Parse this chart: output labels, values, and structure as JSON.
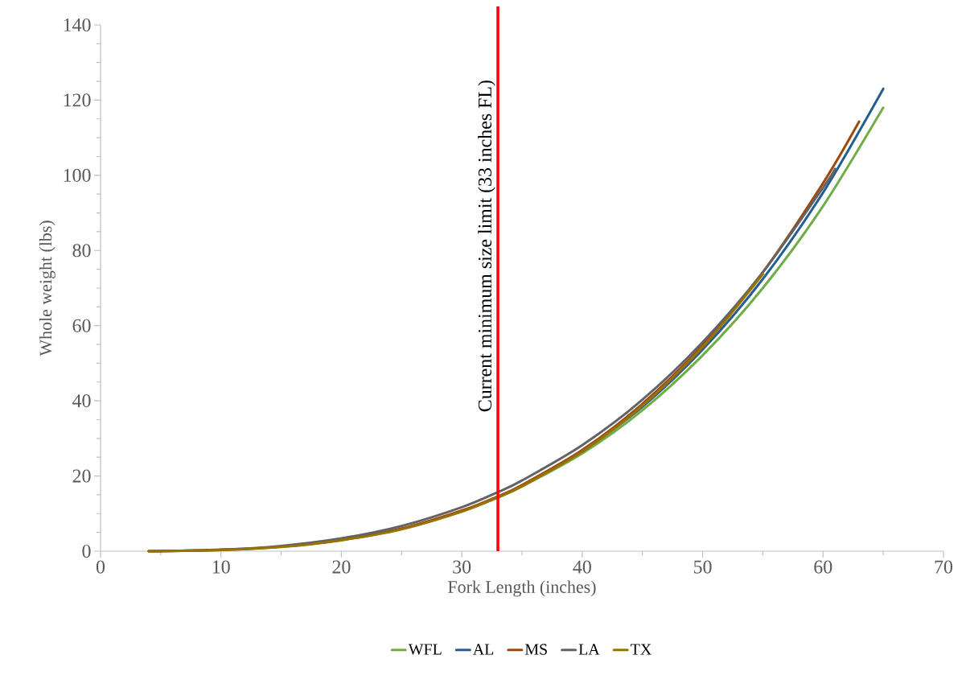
{
  "chart_data": {
    "type": "line",
    "xlabel": "Fork Length (inches)",
    "ylabel": "Whole weight (lbs)",
    "xlim": [
      0,
      70
    ],
    "ylim": [
      0,
      140
    ],
    "xticks": [
      0,
      10,
      20,
      30,
      40,
      50,
      60,
      70
    ],
    "yticks": [
      0,
      20,
      40,
      60,
      80,
      100,
      120,
      140
    ],
    "grid": false,
    "legend": "bottom",
    "marker": "none",
    "line_style": "solid",
    "x": [
      4,
      10,
      15,
      20,
      25,
      30,
      33,
      35,
      40,
      45,
      50,
      55,
      60,
      65
    ],
    "series": [
      {
        "name": "WFL",
        "color": "#70ad47",
        "values": [
          0,
          0.4,
          1.2,
          3.0,
          6.0,
          10.6,
          14.3,
          17.2,
          26.0,
          37.5,
          52.1,
          70.0,
          91.8,
          118
        ]
      },
      {
        "name": "AL",
        "color": "#255e91",
        "values": [
          null,
          null,
          null,
          null,
          null,
          null,
          null,
          null,
          26.5,
          38.4,
          53.6,
          72.4,
          95.4,
          123
        ]
      },
      {
        "name": "MS",
        "color": "#9e480e",
        "x": [
          4,
          10,
          15,
          20,
          25,
          30,
          33,
          35,
          40,
          45,
          50,
          55,
          60,
          63
        ],
        "values": [
          0,
          0.3,
          1.2,
          3.0,
          6.0,
          10.8,
          14.6,
          17.6,
          26.9,
          39.2,
          54.8,
          74.2,
          97.9,
          114.3
        ]
      },
      {
        "name": "LA",
        "color": "#636363",
        "x": [
          4,
          10,
          15,
          20,
          25,
          30,
          33,
          35,
          40,
          45,
          50,
          55,
          60,
          61
        ],
        "values": [
          0,
          0.4,
          1.4,
          3.4,
          6.7,
          11.7,
          15.7,
          18.8,
          28.2,
          40.3,
          55.6,
          74.2,
          96.7,
          101.7
        ]
      },
      {
        "name": "TX",
        "color": "#997300",
        "x": [
          4,
          10,
          15,
          20,
          25,
          30,
          33,
          35,
          40,
          45,
          50,
          55
        ],
        "values": [
          0,
          0.3,
          1.1,
          2.9,
          5.8,
          10.5,
          14.3,
          17.3,
          26.5,
          38.7,
          54.3,
          73.7
        ]
      }
    ],
    "ref_lines": [
      {
        "axis": "x",
        "value": 33,
        "label": "Current minimum size limit (33 inches FL)",
        "color": "#ff0000",
        "line_style": "solid"
      }
    ]
  }
}
